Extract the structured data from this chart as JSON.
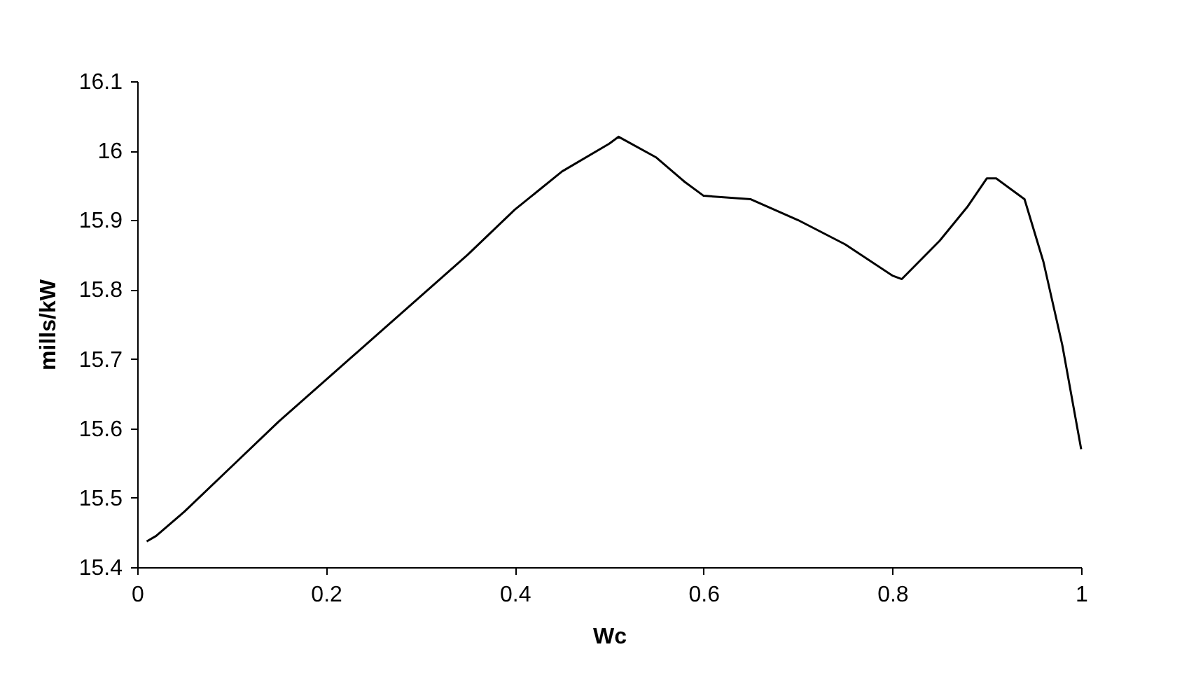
{
  "chart_data": {
    "type": "line",
    "xlabel": "Wc",
    "ylabel": "mills/kW",
    "x": [
      0.01,
      0.02,
      0.05,
      0.1,
      0.15,
      0.2,
      0.25,
      0.3,
      0.35,
      0.4,
      0.45,
      0.5,
      0.51,
      0.55,
      0.58,
      0.6,
      0.65,
      0.7,
      0.75,
      0.8,
      0.81,
      0.85,
      0.88,
      0.9,
      0.91,
      0.94,
      0.96,
      0.97,
      0.98,
      1.0
    ],
    "series": [
      {
        "color": "#000000",
        "values": [
          15.437,
          15.445,
          15.48,
          15.545,
          15.61,
          15.67,
          15.73,
          15.79,
          15.85,
          15.915,
          15.97,
          16.01,
          16.02,
          15.99,
          15.955,
          15.935,
          15.93,
          15.9,
          15.865,
          15.82,
          15.815,
          15.87,
          15.92,
          15.96,
          15.96,
          15.93,
          15.84,
          15.78,
          15.72,
          15.57
        ]
      }
    ],
    "xlim": [
      0,
      1
    ],
    "xticks": [
      0,
      0.2,
      0.4,
      0.6,
      0.8,
      1
    ],
    "ylim": [
      15.4,
      16.1
    ],
    "yticks": [
      15.4,
      15.5,
      15.6,
      15.7,
      15.8,
      15.9,
      16,
      16.1
    ],
    "grid": false,
    "marker": "none",
    "line_style": "solid"
  }
}
